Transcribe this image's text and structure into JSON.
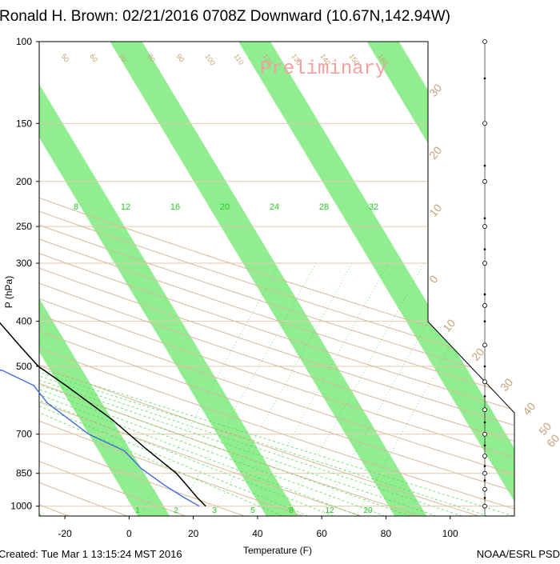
{
  "chart_data": {
    "type": "line",
    "subtype": "skew-T log-P sounding",
    "title": "Ronald H. Brown: 02/21/2016 0708Z Downward (10.67N,142.94W)",
    "watermark": "Preliminary",
    "xlabel": "Temperature (F)",
    "ylabel": "P (hPa)",
    "xlim": [
      -28,
      120
    ],
    "ylim": [
      1050,
      100
    ],
    "y_scale": "log",
    "x_ticks": [
      "-20",
      "0",
      "20",
      "40",
      "60",
      "80",
      "100"
    ],
    "y_ticks": [
      "100",
      "150",
      "200",
      "250",
      "300",
      "400",
      "500",
      "700",
      "850",
      "1000"
    ],
    "isotherm_band_colors": [
      "#90ee90",
      "#ffffff"
    ],
    "mixing_ratio_top_labels": [
      "8",
      "12",
      "16",
      "20",
      "24",
      "28",
      "32"
    ],
    "mixing_ratio_bottom_labels": [
      "1",
      "2",
      "3",
      "5",
      "8",
      "12",
      "20"
    ],
    "dry_adiabat_labels": [
      "50",
      "60",
      "70",
      "80",
      "90",
      "100",
      "110",
      "120",
      "130",
      "140",
      "150",
      "160"
    ],
    "moist_adiabat_labels": [
      "30",
      "20",
      "10",
      "0",
      "10",
      "20",
      "30",
      "40",
      "50",
      "60"
    ],
    "series": [
      {
        "name": "Temperature",
        "color": "#000000",
        "points": [
          [
            -34,
            100
          ],
          [
            -36,
            120
          ],
          [
            -34,
            150
          ],
          [
            -30,
            200
          ],
          [
            -28,
            250
          ],
          [
            -19,
            300
          ],
          [
            -11,
            350
          ],
          [
            -7,
            370
          ],
          [
            -7,
            400
          ],
          [
            -5,
            450
          ],
          [
            -3,
            500
          ],
          [
            2,
            550
          ],
          [
            10,
            650
          ],
          [
            15,
            750
          ],
          [
            20,
            850
          ],
          [
            21,
            900
          ],
          [
            22,
            960
          ],
          [
            23,
            1000
          ]
        ]
      },
      {
        "name": "Dewpoint",
        "color": "#4169e1",
        "points": [
          [
            -60,
            100
          ],
          [
            -62,
            120
          ],
          [
            -63,
            150
          ],
          [
            -68,
            185
          ],
          [
            -68,
            210
          ],
          [
            -75,
            240
          ],
          [
            -64,
            270
          ],
          [
            -55,
            300
          ],
          [
            -59,
            330
          ],
          [
            -83,
            350
          ],
          [
            -90,
            370
          ],
          [
            -80,
            390
          ],
          [
            -50,
            400
          ],
          [
            -40,
            410
          ],
          [
            -15,
            440
          ],
          [
            -13,
            460
          ],
          [
            -16,
            480
          ],
          [
            -27,
            500
          ],
          [
            -15,
            510
          ],
          [
            -8,
            550
          ],
          [
            -7,
            600
          ],
          [
            0,
            700
          ],
          [
            8,
            760
          ],
          [
            10,
            830
          ],
          [
            14,
            900
          ],
          [
            18,
            960
          ],
          [
            21,
            1000
          ]
        ]
      }
    ],
    "wind_profile": {
      "color": "#000000",
      "style": "staff"
    }
  },
  "footer": {
    "created": "Created: Tue Mar  1 13:15:24 MST 2016",
    "credit": "NOAA/ESRL PSD"
  }
}
